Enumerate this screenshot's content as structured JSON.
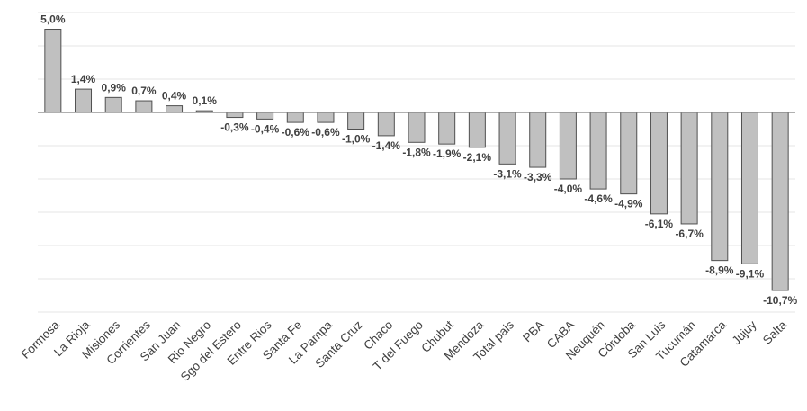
{
  "chart_data": {
    "type": "bar",
    "title": "",
    "xlabel": "",
    "ylabel": "",
    "ylim": [
      -12,
      6
    ],
    "grid": true,
    "categories": [
      "Formosa",
      "La Rioja",
      "Misiones",
      "Corrientes",
      "San Juan",
      "Rio Negro",
      "Sgo del Estero",
      "Entre Rios",
      "Santa Fe",
      "La Pampa",
      "Santa Cruz",
      "Chaco",
      "T del Fuego",
      "Chubut",
      "Mendoza",
      "Total pais",
      "PBA",
      "CABA",
      "Neuquén",
      "Córdoba",
      "San Luis",
      "Tucumán",
      "Catamarca",
      "Jujuy",
      "Salta"
    ],
    "values": [
      5.0,
      1.4,
      0.9,
      0.7,
      0.4,
      0.1,
      -0.3,
      -0.4,
      -0.6,
      -0.6,
      -1.0,
      -1.4,
      -1.8,
      -1.9,
      -2.1,
      -3.1,
      -3.3,
      -4.0,
      -4.6,
      -4.9,
      -6.1,
      -6.7,
      -8.9,
      -9.1,
      -10.7
    ],
    "labels": [
      "5,0%",
      "1,4%",
      "0,9%",
      "0,7%",
      "0,4%",
      "0,1%",
      "-0,3%",
      "-0,4%",
      "-0,6%",
      "-0,6%",
      "-1,0%",
      "-1,4%",
      "-1,8%",
      "-1,9%",
      "-2,1%",
      "-3,1%",
      "-3,3%",
      "-4,0%",
      "-4,6%",
      "-4,9%",
      "-6,1%",
      "-6,7%",
      "-8,9%",
      "-9,1%",
      "-10,7%"
    ],
    "colors": {
      "bar_fill": "#c0c0c0",
      "bar_stroke": "#505050",
      "text": "#404040",
      "grid": "#e6e6e6"
    }
  }
}
